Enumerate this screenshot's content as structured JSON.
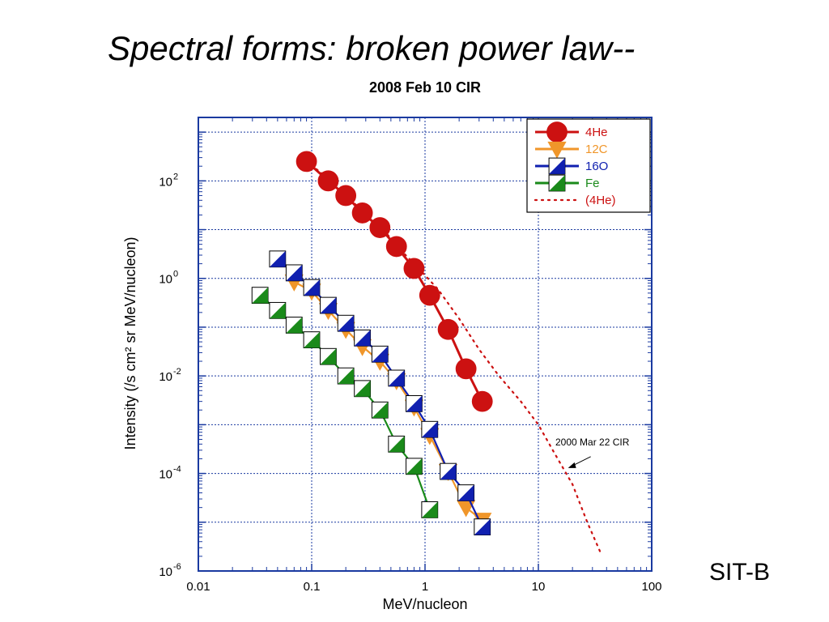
{
  "slide": {
    "title": "Spectral forms: broken power law--",
    "corner_label": "SIT-B"
  },
  "chart_data": {
    "type": "scatter",
    "title": "2008 Feb 10 CIR",
    "xlabel": "MeV/nucleon",
    "ylabel": "Intensity (/s cm² sr MeV/nucleon)",
    "x_scale": "log",
    "y_scale": "log",
    "xlim": [
      0.01,
      100
    ],
    "ylim": [
      1e-06,
      2000
    ],
    "x_ticks": [
      {
        "value": 0.01,
        "label": "0.01"
      },
      {
        "value": 0.1,
        "label": "0.1"
      },
      {
        "value": 1,
        "label": "1"
      },
      {
        "value": 10,
        "label": "10"
      },
      {
        "value": 100,
        "label": "100"
      }
    ],
    "y_ticks": [
      {
        "value": 1e-06,
        "base": "10",
        "exp": "-6"
      },
      {
        "value": 0.0001,
        "base": "10",
        "exp": "-4"
      },
      {
        "value": 0.01,
        "base": "10",
        "exp": "-2"
      },
      {
        "value": 1,
        "base": "10",
        "exp": "0"
      },
      {
        "value": 100,
        "base": "10",
        "exp": "2"
      }
    ],
    "grid": true,
    "legend_position": "top-right",
    "annotation": {
      "text": "2000 Mar 22 CIR",
      "points_to": {
        "x": 15,
        "y": 0.00012
      }
    },
    "series": [
      {
        "name": "4He",
        "color": "#cc1111",
        "marker": "circle",
        "x": [
          0.09,
          0.14,
          0.2,
          0.28,
          0.4,
          0.56,
          0.8,
          1.1,
          1.6,
          2.3,
          3.2
        ],
        "y": [
          250,
          100,
          50,
          22,
          11,
          4.5,
          1.6,
          0.45,
          0.09,
          0.014,
          0.003
        ]
      },
      {
        "name": "12C",
        "color": "#f0962a",
        "marker": "triangle-down",
        "x": [
          0.07,
          0.1,
          0.14,
          0.2,
          0.28,
          0.4,
          0.56,
          0.8,
          1.1,
          1.6,
          2.3,
          3.2
        ],
        "y": [
          0.85,
          0.55,
          0.22,
          0.09,
          0.04,
          0.02,
          0.008,
          0.0023,
          0.0006,
          0.00011,
          2e-05,
          1.1e-05
        ]
      },
      {
        "name": "16O",
        "color": "#1020b0",
        "marker": "half-filled-square",
        "x": [
          0.05,
          0.07,
          0.1,
          0.14,
          0.2,
          0.28,
          0.4,
          0.56,
          0.8,
          1.1,
          1.6,
          2.3,
          3.2
        ],
        "y": [
          2.5,
          1.3,
          0.65,
          0.28,
          0.12,
          0.06,
          0.028,
          0.009,
          0.0027,
          0.0008,
          0.00011,
          4e-05,
          8e-06
        ]
      },
      {
        "name": "Fe",
        "color": "#1a8a1a",
        "marker": "half-filled-square",
        "x": [
          0.035,
          0.05,
          0.07,
          0.1,
          0.14,
          0.2,
          0.28,
          0.4,
          0.56,
          0.8,
          1.1
        ],
        "y": [
          0.45,
          0.22,
          0.11,
          0.055,
          0.025,
          0.01,
          0.0055,
          0.002,
          0.0004,
          0.00014,
          1.8e-05
        ]
      },
      {
        "name": "(4He)",
        "color": "#cc1111",
        "marker": "none",
        "line": "dotted",
        "x": [
          0.08,
          0.12,
          0.18,
          0.28,
          0.4,
          0.6,
          0.9,
          1.3,
          2,
          3,
          4.5,
          7,
          10,
          14,
          20,
          27,
          35
        ],
        "y": [
          300,
          150,
          60,
          25,
          12,
          4,
          1.5,
          0.6,
          0.15,
          0.035,
          0.01,
          0.003,
          0.001,
          0.00025,
          6e-05,
          1e-05,
          2.5e-06
        ]
      }
    ]
  }
}
